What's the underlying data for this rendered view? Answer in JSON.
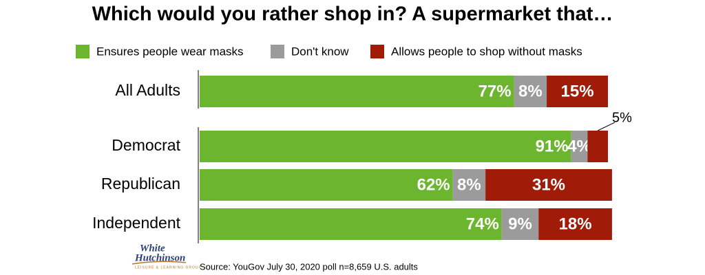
{
  "chart_data": {
    "type": "stacked_bar_horizontal",
    "title": "Which would you rather shop in? A supermarket that…",
    "categories": [
      "All Adults",
      "Democrat",
      "Republican",
      "Independent"
    ],
    "series": [
      {
        "name": "Ensures people wear masks",
        "color": "#6cb52f",
        "values": [
          77,
          91,
          62,
          74
        ],
        "value_labels": [
          "77%",
          "91%",
          "62%",
          "74%"
        ]
      },
      {
        "name": "Don't know",
        "color": "#9b9b9b",
        "values": [
          8,
          4,
          8,
          9
        ],
        "value_labels": [
          "8%",
          "4%",
          "8%",
          "9%"
        ]
      },
      {
        "name": "Allows people to shop without masks",
        "color": "#a01c08",
        "values": [
          15,
          5,
          31,
          18
        ],
        "value_labels": [
          "15%",
          "5%",
          "31%",
          "18%"
        ]
      }
    ],
    "legend": "top",
    "source": "Source: YouGov July 30, 2020 poll n=8,659 U.S. adults",
    "logo": [
      "White",
      "Hutchinson",
      "LEISURE & LEARNING GROUP"
    ]
  }
}
